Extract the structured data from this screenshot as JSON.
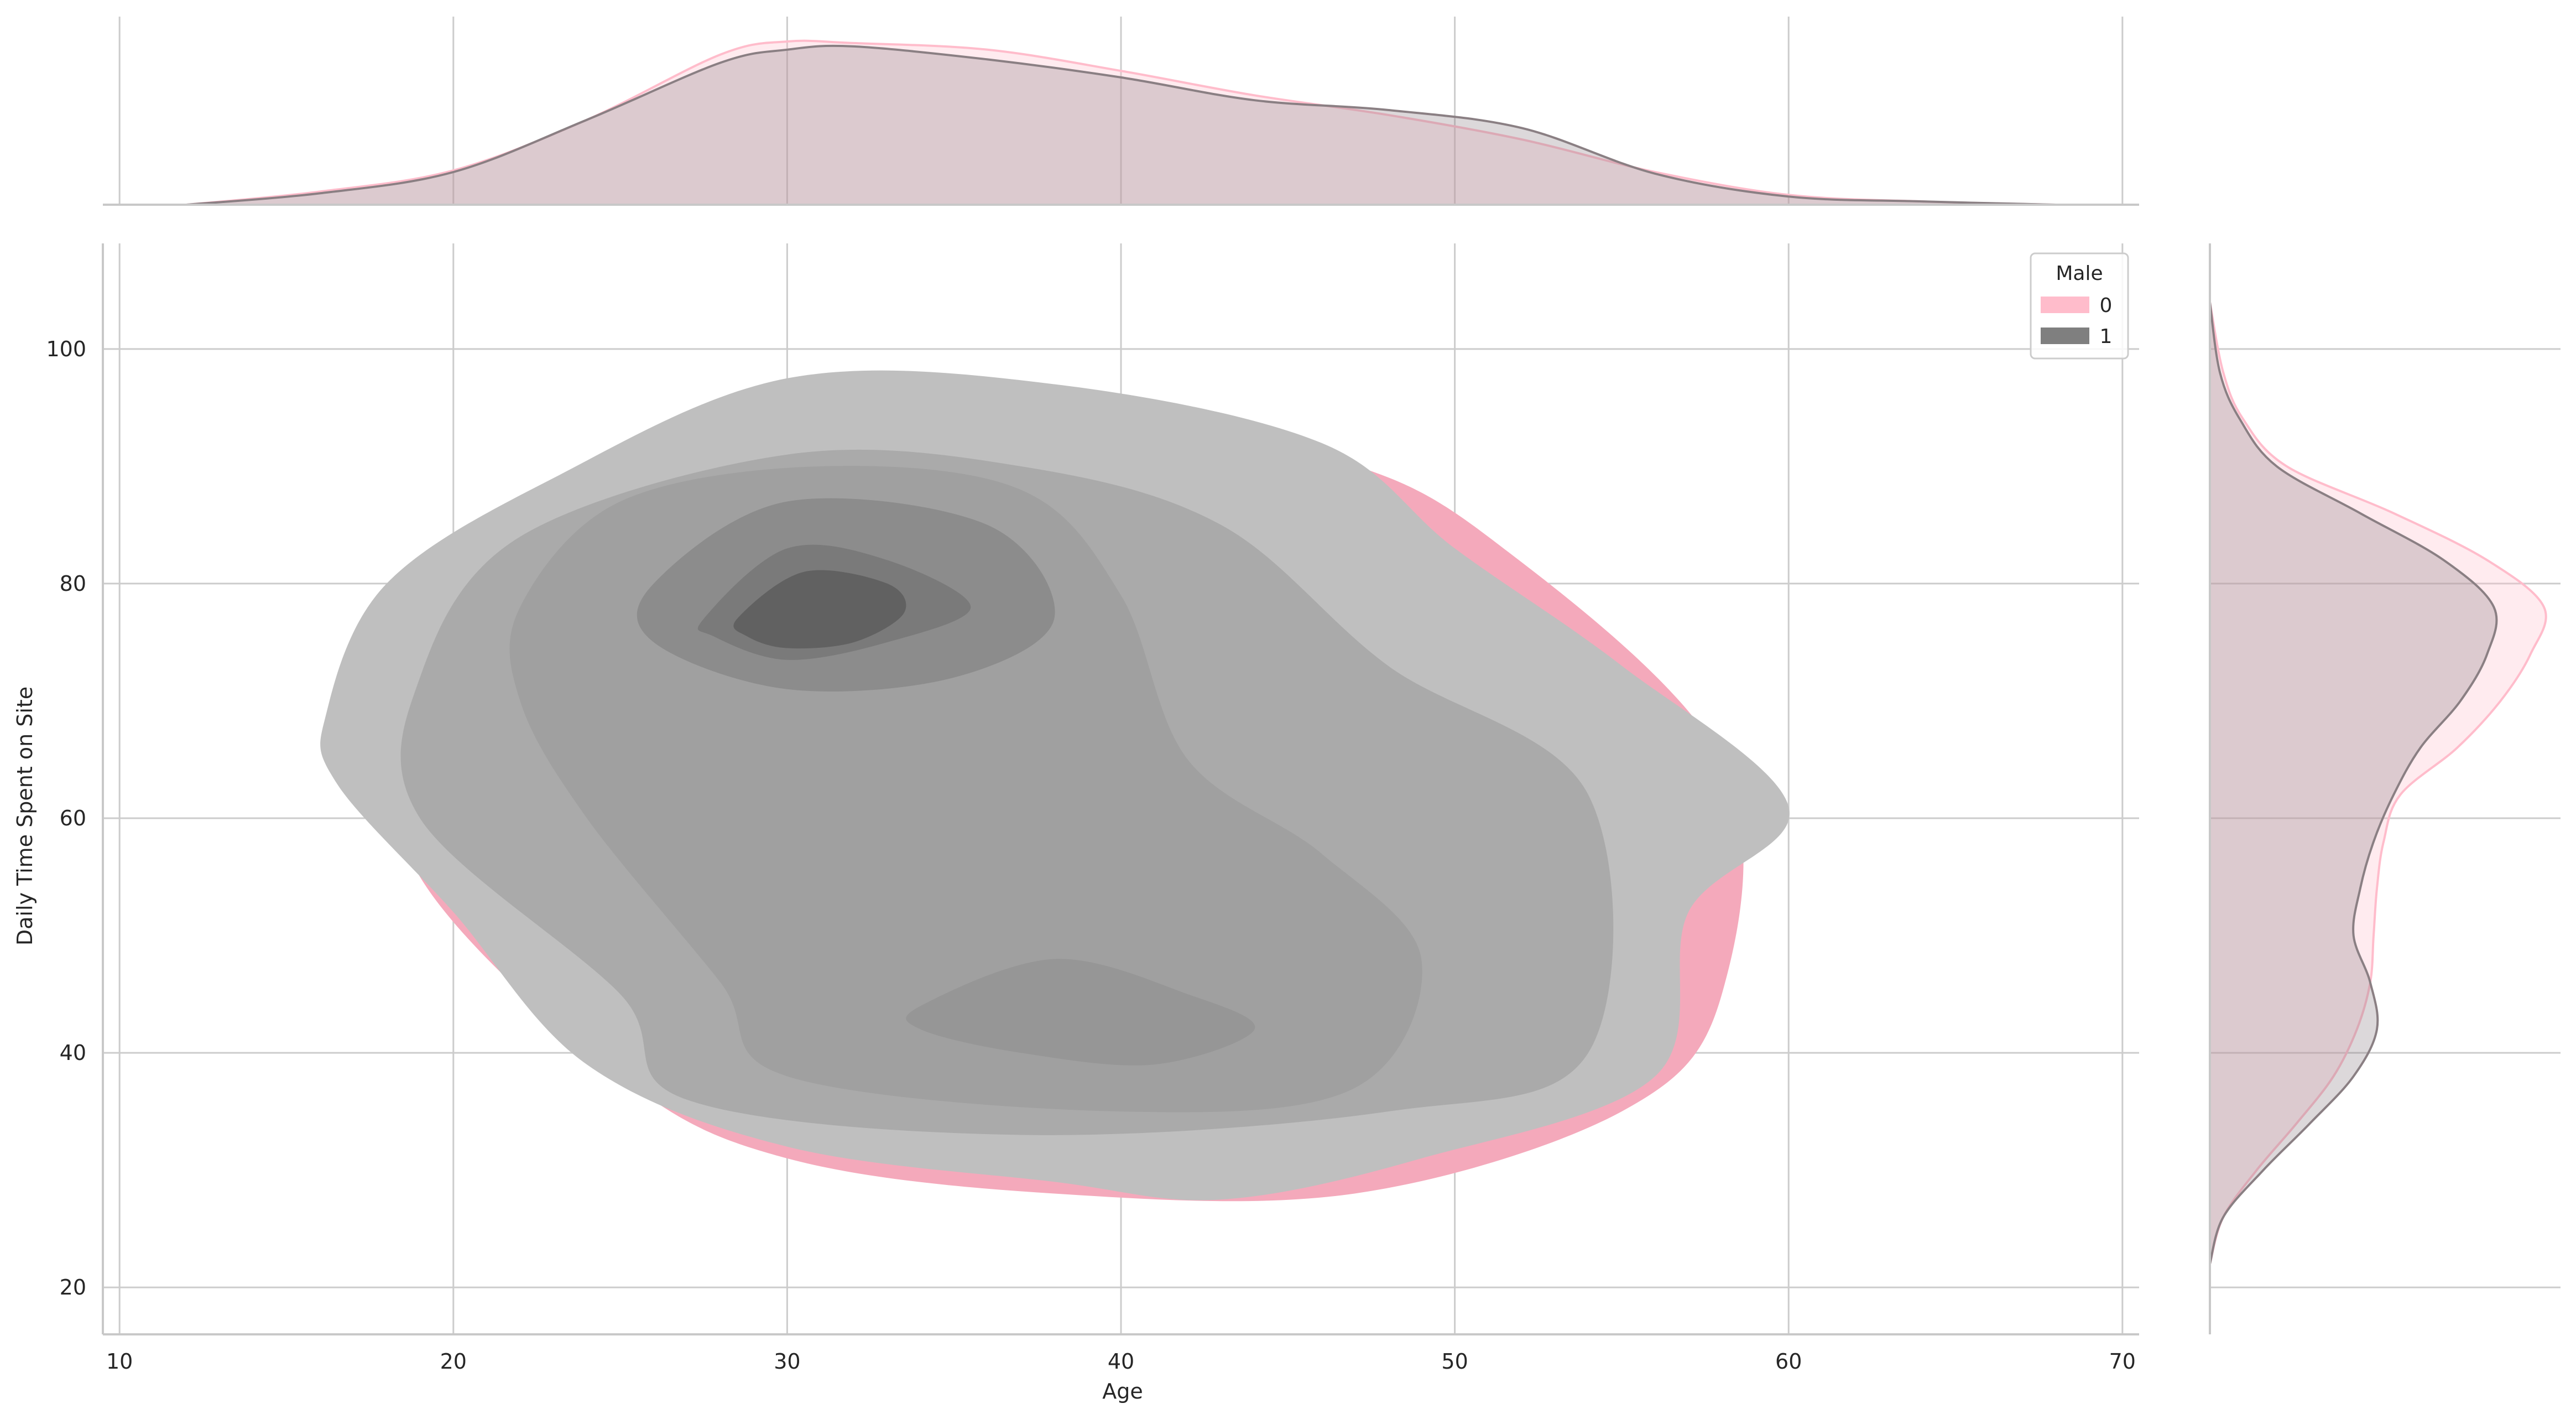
{
  "chart_data": {
    "type": "kde_joint_density",
    "xlabel": "Age",
    "ylabel": "Daily Time Spent on Site",
    "xlim": [
      9.5,
      70.5
    ],
    "ylim": [
      16,
      109
    ],
    "x_ticks": [
      10,
      20,
      30,
      40,
      50,
      60,
      70
    ],
    "y_ticks": [
      20,
      40,
      60,
      80,
      100
    ],
    "grid": true,
    "legend": {
      "title": "Male",
      "placement": "top-right",
      "entries": [
        {
          "label": "0",
          "color": "#ffbccb"
        },
        {
          "label": "1",
          "color": "#7f7f7f"
        }
      ]
    },
    "joint": {
      "series": [
        {
          "name": "0",
          "color": "#f4a9bb",
          "outer_contour": [
            [
              18,
              71
            ],
            [
              22,
              84
            ],
            [
              30,
              92
            ],
            [
              38,
              96
            ],
            [
              46,
              91
            ],
            [
              51,
              84
            ],
            [
              58,
              65
            ],
            [
              58,
              45
            ],
            [
              55,
              35
            ],
            [
              47,
              28
            ],
            [
              38,
              28
            ],
            [
              30,
              31
            ],
            [
              25,
              38
            ],
            [
              19,
              55
            ]
          ]
        },
        {
          "name": "1",
          "levels": [
            {
              "color": "#bfbfbf",
              "contour": [
                [
                  16.2,
                  69
                ],
                [
                  18,
                  80
                ],
                [
                  23,
                  89
                ],
                [
                  30,
                  97.5
                ],
                [
                  38,
                  97
                ],
                [
                  46,
                  92
                ],
                [
                  50,
                  83
                ],
                [
                  55,
                  73
                ],
                [
                  60,
                  61
                ],
                [
                  57,
                  52
                ],
                [
                  56,
                  38
                ],
                [
                  49,
                  31
                ],
                [
                  43,
                  27.5
                ],
                [
                  38,
                  29
                ],
                [
                  30,
                  32
                ],
                [
                  24,
                  39
                ],
                [
                  20,
                  52
                ],
                [
                  16.5,
                  63
                ]
              ]
            },
            {
              "color": "#aaaaaa",
              "contour": [
                [
                  19,
                  72
                ],
                [
                  22,
                  84
                ],
                [
                  30,
                  91
                ],
                [
                  37,
                  90
                ],
                [
                  43,
                  85
                ],
                [
                  48,
                  73
                ],
                [
                  54,
                  62
                ],
                [
                  54,
                  40
                ],
                [
                  48,
                  35
                ],
                [
                  37,
                  33
                ],
                [
                  27,
                  36
                ],
                [
                  25,
                  45
                ],
                [
                  19,
                  60
                ]
              ]
            },
            {
              "color": "#a0a0a0",
              "contour": [
                [
                  22,
                  78
                ],
                [
                  25,
                  87
                ],
                [
                  31,
                  90
                ],
                [
                  37,
                  88
                ],
                [
                  40,
                  79
                ],
                [
                  42,
                  65
                ],
                [
                  46,
                  57
                ],
                [
                  49,
                  48
                ],
                [
                  47,
                  37
                ],
                [
                  40,
                  35
                ],
                [
                  30,
                  38
                ],
                [
                  28,
                  46
                ],
                [
                  24,
                  60
                ],
                [
                  22,
                  70
                ]
              ]
            },
            {
              "color": "#8c8c8c",
              "contour": [
                [
                  26,
                  80
                ],
                [
                  30,
                  87
                ],
                [
                  36,
                  85
                ],
                [
                  38,
                  77
                ],
                [
                  35,
                  72
                ],
                [
                  30,
                  71
                ],
                [
                  26,
                  75
                ]
              ]
            },
            {
              "color": "#7a7a7a",
              "contour": [
                [
                  27.5,
                  77
                ],
                [
                  30,
                  83
                ],
                [
                  33,
                  82
                ],
                [
                  35.5,
                  78
                ],
                [
                  33,
                  75
                ],
                [
                  30,
                  73.5
                ],
                [
                  27.8,
                  75.5
                ]
              ]
            },
            {
              "color": "#616161",
              "contour": [
                [
                  28.5,
                  77
                ],
                [
                  30.5,
                  81
                ],
                [
                  33,
                  80
                ],
                [
                  33.5,
                  77.5
                ],
                [
                  32,
                  75
                ],
                [
                  30,
                  74.5
                ],
                [
                  28.8,
                  75.5
                ]
              ]
            },
            {
              "color": "#969696",
              "contour": [
                [
                  34,
                  44
                ],
                [
                  38,
                  48
                ],
                [
                  42,
                  45
                ],
                [
                  44,
                  42
                ],
                [
                  41,
                  39
                ],
                [
                  37,
                  40
                ],
                [
                  34,
                  42
                ]
              ]
            }
          ]
        }
      ]
    },
    "marginal_x": {
      "series": [
        {
          "name": "0",
          "color": "#ffbccb",
          "x": [
            12,
            16,
            20,
            24,
            28,
            30,
            32,
            36,
            40,
            44,
            48,
            52,
            56,
            60,
            64,
            68
          ],
          "density": [
            0.0,
            0.08,
            0.21,
            0.52,
            0.92,
            1.0,
            0.99,
            0.95,
            0.82,
            0.67,
            0.55,
            0.4,
            0.2,
            0.06,
            0.02,
            0.0
          ]
        },
        {
          "name": "1",
          "color": "#8a7f83",
          "x": [
            12,
            16,
            20,
            24,
            28,
            30,
            32,
            36,
            40,
            44,
            48,
            52,
            56,
            60,
            64,
            68
          ],
          "density": [
            0.0,
            0.07,
            0.2,
            0.52,
            0.87,
            0.95,
            0.97,
            0.89,
            0.78,
            0.64,
            0.58,
            0.47,
            0.19,
            0.05,
            0.02,
            0.0
          ]
        }
      ]
    },
    "marginal_y": {
      "series": [
        {
          "name": "0",
          "color": "#ffbccb",
          "y": [
            22,
            26,
            30,
            34,
            38,
            42,
            46,
            50,
            54,
            58,
            62,
            66,
            70,
            74,
            78,
            82,
            86,
            90,
            94,
            98,
            104
          ],
          "density": [
            0.0,
            0.04,
            0.14,
            0.26,
            0.37,
            0.44,
            0.48,
            0.49,
            0.5,
            0.52,
            0.57,
            0.74,
            0.87,
            0.96,
            1.0,
            0.83,
            0.55,
            0.23,
            0.1,
            0.04,
            0.0
          ]
        },
        {
          "name": "1",
          "color": "#8a7f83",
          "y": [
            22,
            26,
            30,
            34,
            38,
            42,
            46,
            50,
            54,
            58,
            62,
            66,
            70,
            74,
            78,
            82,
            86,
            90,
            94,
            98,
            104
          ],
          "density": [
            0.0,
            0.04,
            0.16,
            0.3,
            0.43,
            0.5,
            0.48,
            0.43,
            0.45,
            0.49,
            0.55,
            0.63,
            0.75,
            0.83,
            0.85,
            0.7,
            0.45,
            0.2,
            0.09,
            0.03,
            0.0
          ]
        }
      ]
    }
  }
}
